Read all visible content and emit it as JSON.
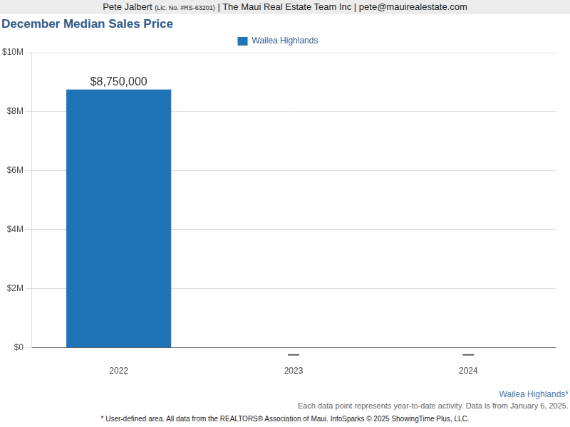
{
  "header": [
    "Pete Jalbert",
    "(Lic. No. #RS-63201)",
    "| The Maui Real Estate Team Inc | pete@mauirealestate.com"
  ],
  "chart_data": {
    "type": "bar",
    "title": "December Median Sales Price",
    "categories": [
      "2022",
      "2023",
      "2024"
    ],
    "series": [
      {
        "name": "Wailea Highlands",
        "color": "#1f74b8",
        "values": [
          8750000,
          null,
          null
        ],
        "value_labels": [
          "$8,750,000",
          null,
          null
        ]
      }
    ],
    "ylim": [
      0,
      10000000
    ],
    "yticks": [
      {
        "value": 0,
        "label": "$0"
      },
      {
        "value": 2000000,
        "label": "$2M"
      },
      {
        "value": 4000000,
        "label": "$4M"
      },
      {
        "value": 6000000,
        "label": "$6M"
      },
      {
        "value": 8000000,
        "label": "$8M"
      },
      {
        "value": 10000000,
        "label": "$10M"
      }
    ],
    "grid": true,
    "legend": "top",
    "data_labels": true
  },
  "footer": {
    "area": "Wailea Highlands*",
    "note": "Each data point represents year-to-date activity. Data is from January 6, 2025.",
    "source": "* User-defined area. All data from the REALTORS® Association of Maui. InfoSparks © 2025 ShowingTime Plus, LLC."
  }
}
